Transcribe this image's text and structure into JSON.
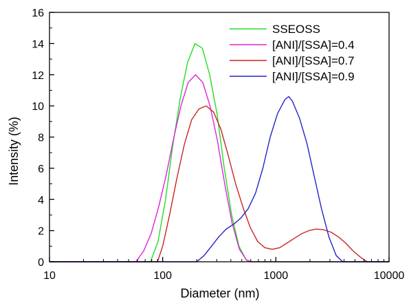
{
  "chart_data": {
    "type": "line",
    "title": "",
    "xlabel": "Diameter (nm)",
    "ylabel": "Intensity (%)",
    "xscale": "log",
    "xlim": [
      10,
      10000
    ],
    "ylim": [
      0,
      16
    ],
    "xticks": [
      10,
      100,
      1000,
      10000
    ],
    "xtick_labels": [
      "10",
      "100",
      "1000",
      "10000"
    ],
    "yticks": [
      0,
      2,
      4,
      6,
      8,
      10,
      12,
      14,
      16
    ],
    "ytick_labels": [
      "0",
      "2",
      "4",
      "6",
      "8",
      "10",
      "12",
      "14",
      "16"
    ],
    "grid": false,
    "legend_position": "top-right",
    "series": [
      {
        "name": "SSEOSS",
        "color": "#22dd22",
        "points": [
          [
            10,
            0
          ],
          [
            78,
            0
          ],
          [
            91,
            1.3
          ],
          [
            106,
            4.0
          ],
          [
            123,
            7.5
          ],
          [
            143,
            10.5
          ],
          [
            166,
            12.8
          ],
          [
            193,
            14.0
          ],
          [
            224,
            13.7
          ],
          [
            260,
            12.0
          ],
          [
            302,
            9.5
          ],
          [
            350,
            6.0
          ],
          [
            407,
            3.0
          ],
          [
            472,
            1.0
          ],
          [
            548,
            0.1
          ],
          [
            600,
            0
          ],
          [
            10000,
            0
          ]
        ]
      },
      {
        "name": "[ANI]/[SSA]=0.4",
        "color": "#dd22dd",
        "points": [
          [
            10,
            0
          ],
          [
            58,
            0
          ],
          [
            68,
            0.7
          ],
          [
            79,
            1.8
          ],
          [
            92,
            3.5
          ],
          [
            107,
            5.5
          ],
          [
            124,
            7.8
          ],
          [
            145,
            10.0
          ],
          [
            168,
            11.5
          ],
          [
            195,
            12.0
          ],
          [
            226,
            11.5
          ],
          [
            262,
            10.0
          ],
          [
            304,
            7.8
          ],
          [
            353,
            5.0
          ],
          [
            410,
            2.5
          ],
          [
            476,
            0.8
          ],
          [
            552,
            0.1
          ],
          [
            620,
            0
          ],
          [
            10000,
            0
          ]
        ]
      },
      {
        "name": "[ANI]/[SSA]=0.7",
        "color": "#cc2222",
        "points": [
          [
            10,
            0
          ],
          [
            90,
            0
          ],
          [
            100,
            1.0
          ],
          [
            115,
            3.0
          ],
          [
            133,
            5.3
          ],
          [
            155,
            7.5
          ],
          [
            180,
            9.1
          ],
          [
            209,
            9.8
          ],
          [
            243,
            10.0
          ],
          [
            282,
            9.6
          ],
          [
            327,
            8.5
          ],
          [
            380,
            6.8
          ],
          [
            441,
            5.0
          ],
          [
            512,
            3.5
          ],
          [
            594,
            2.2
          ],
          [
            690,
            1.3
          ],
          [
            800,
            0.9
          ],
          [
            929,
            0.8
          ],
          [
            1079,
            0.9
          ],
          [
            1252,
            1.2
          ],
          [
            1454,
            1.5
          ],
          [
            1688,
            1.8
          ],
          [
            1960,
            2.0
          ],
          [
            2276,
            2.1
          ],
          [
            2642,
            2.05
          ],
          [
            3068,
            1.9
          ],
          [
            3562,
            1.6
          ],
          [
            4136,
            1.2
          ],
          [
            4802,
            0.7
          ],
          [
            5576,
            0.3
          ],
          [
            6400,
            0
          ],
          [
            10000,
            0
          ]
        ]
      },
      {
        "name": "[ANI]/[SSA]=0.9",
        "color": "#2222cc",
        "points": [
          [
            10,
            0
          ],
          [
            200,
            0
          ],
          [
            232,
            0.4
          ],
          [
            270,
            1.0
          ],
          [
            313,
            1.6
          ],
          [
            364,
            2.1
          ],
          [
            422,
            2.4
          ],
          [
            490,
            2.8
          ],
          [
            569,
            3.4
          ],
          [
            661,
            4.4
          ],
          [
            767,
            6.0
          ],
          [
            891,
            8.0
          ],
          [
            1034,
            9.5
          ],
          [
            1200,
            10.4
          ],
          [
            1300,
            10.6
          ],
          [
            1400,
            10.3
          ],
          [
            1620,
            9.2
          ],
          [
            1880,
            7.6
          ],
          [
            2180,
            5.5
          ],
          [
            2530,
            3.4
          ],
          [
            2940,
            1.6
          ],
          [
            3410,
            0.4
          ],
          [
            3900,
            0
          ],
          [
            10000,
            0
          ]
        ]
      }
    ]
  }
}
